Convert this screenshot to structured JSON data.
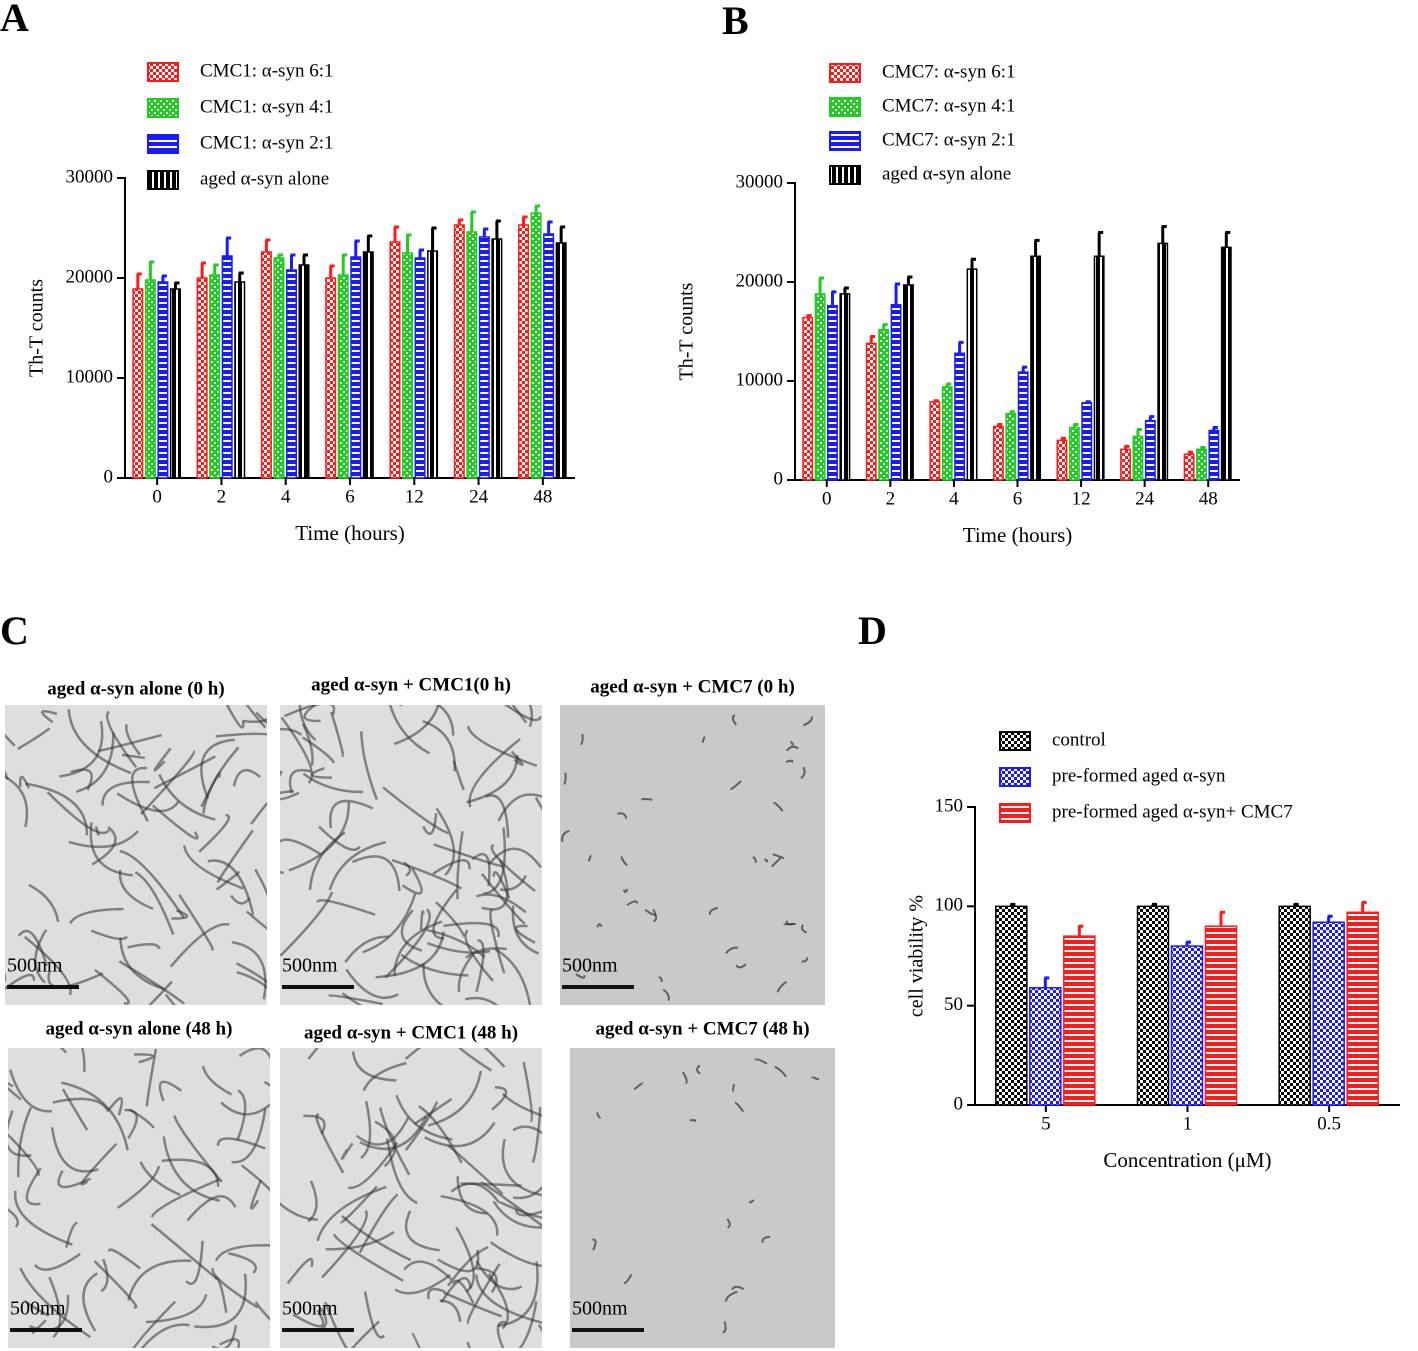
{
  "chart_data": [
    {
      "type": "bar",
      "panel_label": "A",
      "xlabel": "Time (hours)",
      "ylabel": "Th-T counts",
      "categories": [
        "0",
        "2",
        "4",
        "6",
        "12",
        "24",
        "48"
      ],
      "ylim": [
        0,
        30000
      ],
      "yticks": [
        0,
        10000,
        20000,
        30000
      ],
      "legend": "top",
      "series": [
        {
          "name": "CMC1: α-syn 6:1",
          "color": "#ff1a1a",
          "pattern": "checker",
          "values": [
            18900,
            20000,
            22600,
            20000,
            23600,
            25300,
            25300
          ],
          "errors": [
            1500,
            1500,
            1200,
            1200,
            1500,
            500,
            800
          ]
        },
        {
          "name": "CMC1: α-syn 4:1",
          "color": "#22cc22",
          "pattern": "dots",
          "values": [
            19800,
            20300,
            22000,
            20300,
            22500,
            24600,
            26500
          ],
          "errors": [
            1800,
            1000,
            300,
            2000,
            1800,
            2000,
            700
          ]
        },
        {
          "name": "CMC1: α-syn 2:1",
          "color": "#1a1aff",
          "pattern": "hlines",
          "values": [
            19600,
            22200,
            20800,
            22100,
            22000,
            24100,
            24400
          ],
          "errors": [
            600,
            1800,
            1500,
            1600,
            800,
            800,
            1200
          ]
        },
        {
          "name": "aged α-syn alone",
          "color": "#000000",
          "pattern": "vlines",
          "values": [
            18900,
            19600,
            21300,
            22600,
            22700,
            23900,
            23500
          ],
          "errors": [
            600,
            900,
            1000,
            1600,
            2300,
            1800,
            1600
          ]
        }
      ]
    },
    {
      "type": "bar",
      "panel_label": "B",
      "xlabel": "Time (hours)",
      "ylabel": "Th-T counts",
      "categories": [
        "0",
        "2",
        "4",
        "6",
        "12",
        "24",
        "48"
      ],
      "ylim": [
        0,
        30000
      ],
      "yticks": [
        0,
        10000,
        20000,
        30000
      ],
      "legend": "top",
      "series": [
        {
          "name": "CMC7: α-syn 6:1",
          "color": "#ff1a1a",
          "pattern": "checker",
          "values": [
            16400,
            13800,
            7900,
            5400,
            4000,
            3100,
            2600
          ],
          "errors": [
            200,
            700,
            100,
            200,
            200,
            300,
            200
          ]
        },
        {
          "name": "CMC7: α-syn 4:1",
          "color": "#22cc22",
          "pattern": "dots",
          "values": [
            18800,
            15200,
            9400,
            6700,
            5300,
            4400,
            3100
          ],
          "errors": [
            1600,
            500,
            300,
            200,
            300,
            700,
            200
          ]
        },
        {
          "name": "CMC7: α-syn 2:1",
          "color": "#1a1aff",
          "pattern": "hlines",
          "values": [
            17600,
            17700,
            12800,
            10900,
            7800,
            6000,
            5000
          ],
          "errors": [
            1400,
            2100,
            1100,
            500,
            100,
            400,
            300
          ]
        },
        {
          "name": "aged α-syn alone",
          "color": "#000000",
          "pattern": "vlines",
          "values": [
            18800,
            19700,
            21300,
            22600,
            22600,
            23900,
            23500
          ],
          "errors": [
            600,
            800,
            1000,
            1600,
            2400,
            1700,
            1500
          ]
        }
      ]
    },
    {
      "type": "bar",
      "panel_label": "D",
      "xlabel": "Concentration (μM)",
      "ylabel": "cell viability %",
      "categories": [
        "5",
        "1",
        "0.5"
      ],
      "ylim": [
        0,
        150
      ],
      "yticks": [
        0,
        50,
        100,
        150
      ],
      "legend": "top",
      "series": [
        {
          "name": "control",
          "color": "#000000",
          "pattern": "checker",
          "values": [
            100,
            100,
            100
          ],
          "errors": [
            1,
            1,
            1
          ]
        },
        {
          "name": "pre-formed aged α-syn",
          "color": "#1a1aff",
          "pattern": "checker",
          "values": [
            59,
            80,
            92
          ],
          "errors": [
            5,
            2,
            3
          ]
        },
        {
          "name": "pre-formed aged α-syn+ CMC7",
          "color": "#ff1a1a",
          "pattern": "hlines",
          "values": [
            85,
            90,
            97
          ],
          "errors": [
            5,
            7,
            5
          ]
        }
      ]
    }
  ],
  "micrographs": {
    "panel_label": "C",
    "images": [
      {
        "title": "aged α-syn alone (0 h)",
        "scale_label": "500nm"
      },
      {
        "title": "aged α-syn + CMC1(0 h)",
        "scale_label": "500nm"
      },
      {
        "title": "aged α-syn + CMC7 (0 h)",
        "scale_label": "500nm"
      },
      {
        "title": "aged α-syn alone (48 h)",
        "scale_label": "500nm"
      },
      {
        "title": "aged α-syn + CMC1 (48 h)",
        "scale_label": "500nm"
      },
      {
        "title": "aged α-syn + CMC7 (48 h)",
        "scale_label": "500nm"
      }
    ]
  }
}
